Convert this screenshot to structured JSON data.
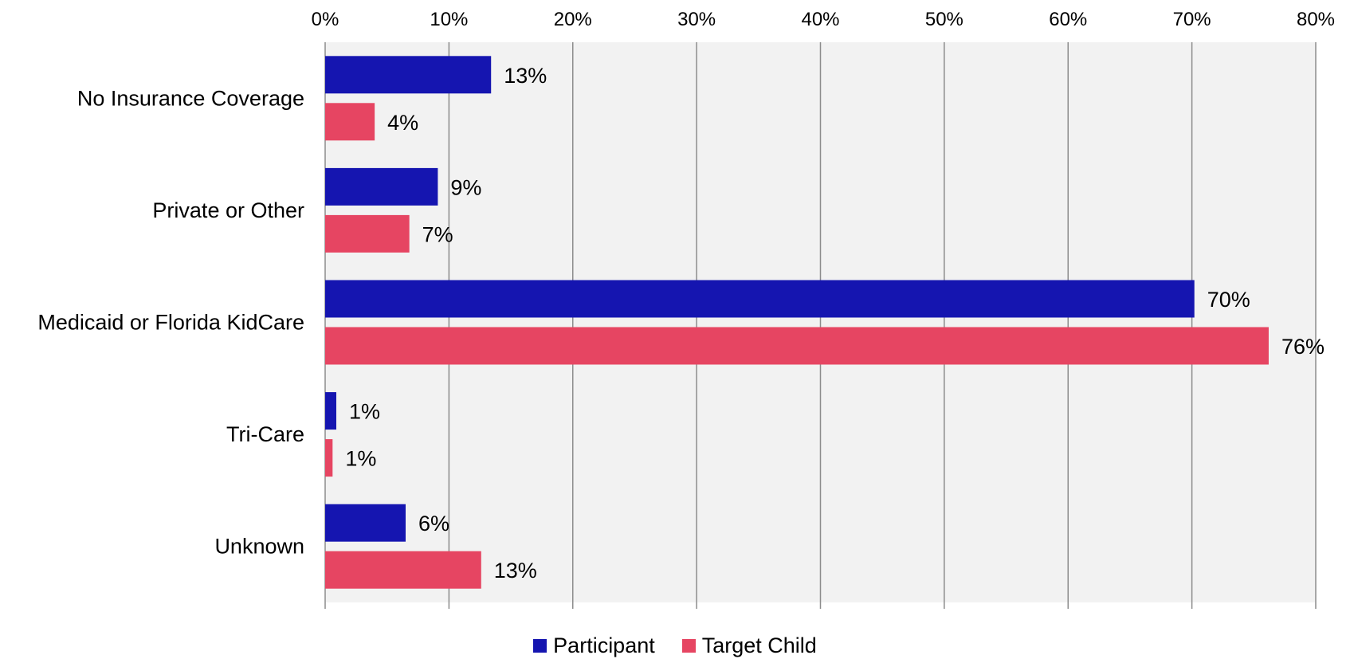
{
  "chart_data": {
    "type": "bar",
    "orientation": "horizontal",
    "categories": [
      "No Insurance Coverage",
      "Private or Other",
      "Medicaid or Florida KidCare",
      "Tri-Care",
      "Unknown"
    ],
    "series": [
      {
        "name": "Participant",
        "values": [
          13.4,
          9.1,
          70.2,
          0.9,
          6.5
        ],
        "labels": [
          "13%",
          "9%",
          "70%",
          "1%",
          "6%"
        ],
        "color": "#1515B0"
      },
      {
        "name": "Target Child",
        "values": [
          4.0,
          6.8,
          76.2,
          0.6,
          12.6
        ],
        "labels": [
          "4%",
          "7%",
          "76%",
          "1%",
          "13%"
        ],
        "color": "#E64562"
      }
    ],
    "xlim": [
      0,
      80
    ],
    "xticks": [
      0,
      10,
      20,
      30,
      40,
      50,
      60,
      70,
      80
    ],
    "xtick_labels": [
      "0%",
      "10%",
      "20%",
      "30%",
      "40%",
      "50%",
      "60%",
      "70%",
      "80%"
    ],
    "axis_position": "top",
    "grid": true,
    "plot_background": "#F2F2F2",
    "legend_position": "bottom"
  }
}
